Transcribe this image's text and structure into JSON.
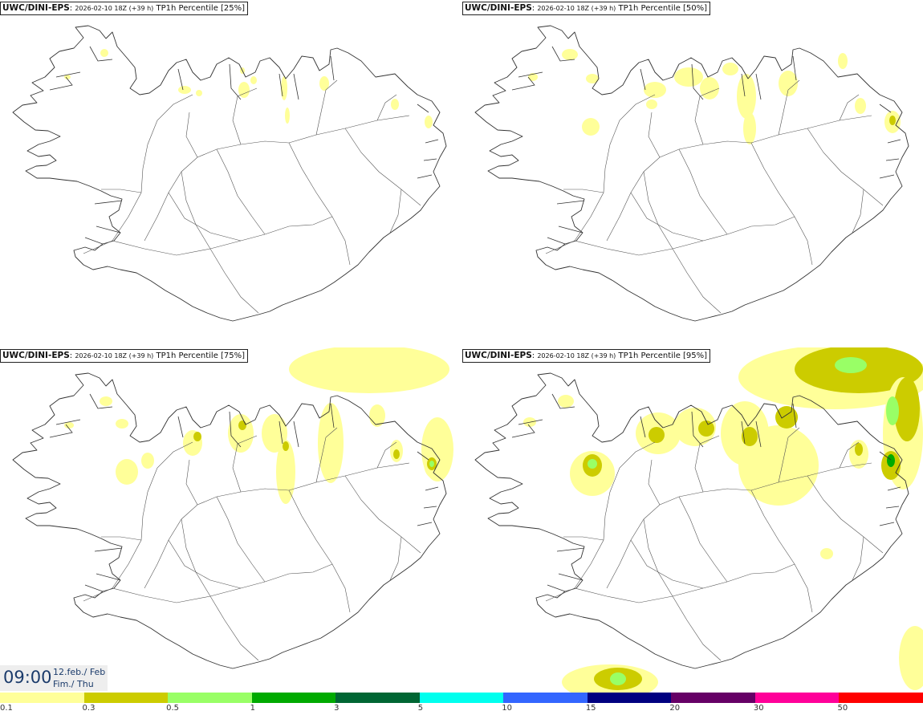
{
  "panels": [
    {
      "model": "UWC/DINI-EPS",
      "run": "2026-02-10 18Z (+39 h)",
      "field": "TP1h Percentile [25%]",
      "level": 1
    },
    {
      "model": "UWC/DINI-EPS",
      "run": "2026-02-10 18Z (+39 h)",
      "field": "TP1h Percentile [50%]",
      "level": 2
    },
    {
      "model": "UWC/DINI-EPS",
      "run": "2026-02-10 18Z (+39 h)",
      "field": "TP1h Percentile [75%]",
      "level": 3
    },
    {
      "model": "UWC/DINI-EPS",
      "run": "2026-02-10 18Z (+39 h)",
      "field": "TP1h Percentile [95%]",
      "level": 4
    }
  ],
  "valid_time": {
    "clock": "09:00",
    "date_line1": "12.feb./ Feb",
    "date_line2": "Fim./ Thu"
  },
  "colorbar": {
    "colors": [
      "#ffff99",
      "#cccc00",
      "#99ff66",
      "#00aa00",
      "#006633",
      "#00ffee",
      "#3366ff",
      "#000080",
      "#660066",
      "#ff0099",
      "#ff0000"
    ],
    "labels": [
      "0.1",
      "0.3",
      "0.5",
      "1",
      "3",
      "5",
      "10",
      "15",
      "20",
      "30",
      "50"
    ]
  }
}
